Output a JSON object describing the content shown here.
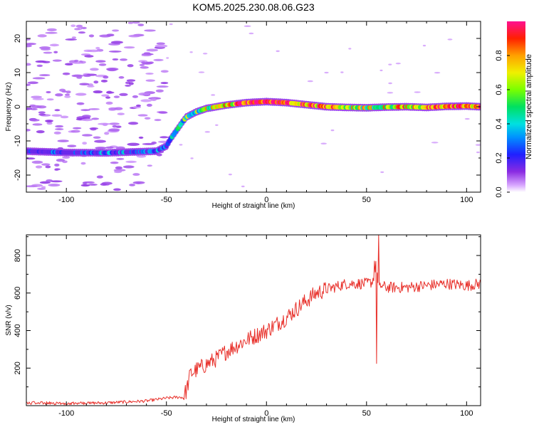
{
  "figure_title": "KOM5.2025.230.08.06.G23",
  "chart_data": [
    {
      "type": "heatmap",
      "name": "spectrogram",
      "title": "KOM5.2025.230.08.06.G23",
      "xlabel": "Height of straight line (km)",
      "ylabel": "Frequency (Hz)",
      "xlim": [
        -120,
        107
      ],
      "ylim": [
        -25,
        25
      ],
      "x_ticks": [
        -100,
        -50,
        0,
        50,
        100
      ],
      "x_tick_labels": [
        "-100",
        "-50",
        "0",
        "50",
        "100"
      ],
      "y_ticks": [
        -20,
        -10,
        0,
        10,
        20
      ],
      "y_tick_labels": [
        "-20",
        "-10",
        "0",
        "10",
        "20"
      ],
      "colorbar": {
        "label": "Normalized spectral amplitude",
        "range": [
          0,
          1
        ],
        "ticks": [
          0.0,
          0.2,
          0.4,
          0.6,
          0.8
        ],
        "tick_labels": [
          "0.0",
          "0.2",
          "0.4",
          "0.6",
          "0.8"
        ]
      },
      "ridge": {
        "x": [
          -120,
          -100,
          -80,
          -65,
          -55,
          -50,
          -48,
          -45,
          -42,
          -40,
          -35,
          -30,
          -20,
          -10,
          0,
          10,
          20,
          30,
          40,
          50,
          60,
          70,
          80,
          90,
          100,
          107
        ],
        "freq": [
          -13,
          -13.4,
          -13.5,
          -13.2,
          -13,
          -11.5,
          -9.5,
          -7,
          -4.5,
          -3,
          -1.5,
          -0.5,
          0.5,
          1.2,
          1.5,
          1.2,
          0.6,
          0.0,
          -0.2,
          -0.3,
          -0.1,
          0.0,
          -0.2,
          0.1,
          0.2,
          0.0
        ],
        "amplitude": [
          0.12,
          0.12,
          0.18,
          0.25,
          0.15,
          0.15,
          0.2,
          0.35,
          0.4,
          0.45,
          0.55,
          0.6,
          0.75,
          0.85,
          0.95,
          0.9,
          0.85,
          0.8,
          0.7,
          0.6,
          0.65,
          0.7,
          0.75,
          0.8,
          0.85,
          0.8
        ]
      },
      "background_noise_region_x": [
        -120,
        -50
      ],
      "background_noise_amplitude": 0.05
    },
    {
      "type": "line",
      "name": "snr",
      "xlabel": "Height of straight line (km)",
      "ylabel": "SNR (v/v)",
      "xlim": [
        -120,
        107
      ],
      "ylim": [
        0,
        910
      ],
      "x_ticks": [
        -100,
        -50,
        0,
        50,
        100
      ],
      "x_tick_labels": [
        "-100",
        "-50",
        "0",
        "50",
        "100"
      ],
      "y_ticks": [
        200,
        400,
        600,
        800
      ],
      "y_tick_labels": [
        "200",
        "400",
        "600",
        "800"
      ],
      "color": "#e8302a",
      "trend": {
        "x": [
          -120,
          -100,
          -80,
          -60,
          -50,
          -45,
          -42,
          -40,
          -38,
          -35,
          -30,
          -25,
          -20,
          -10,
          0,
          10,
          20,
          25,
          30,
          40,
          50,
          53,
          55,
          56,
          57,
          60,
          70,
          80,
          90,
          100,
          107
        ],
        "y": [
          15,
          12,
          15,
          25,
          40,
          45,
          45,
          80,
          170,
          190,
          220,
          250,
          290,
          350,
          400,
          470,
          560,
          600,
          620,
          650,
          650,
          660,
          760,
          600,
          640,
          630,
          630,
          640,
          650,
          640,
          650
        ]
      },
      "noise_amplitude": [
        {
          "x_from": -120,
          "x_to": -42,
          "amp": 8
        },
        {
          "x_from": -42,
          "x_to": 30,
          "amp": 45
        },
        {
          "x_from": 30,
          "x_to": 107,
          "amp": 30
        }
      ],
      "spikes": [
        {
          "x": 54,
          "y": 770
        },
        {
          "x": 55,
          "y": 225
        },
        {
          "x": 56,
          "y": 910
        }
      ]
    }
  ]
}
